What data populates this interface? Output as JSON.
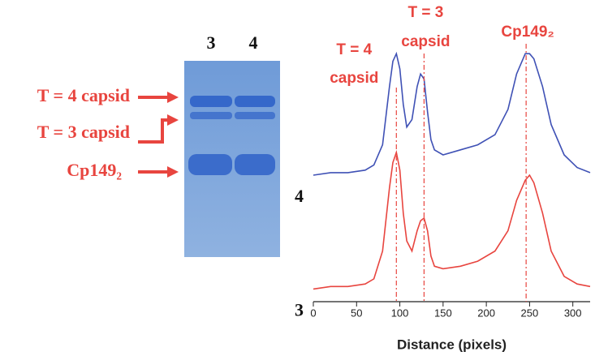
{
  "gel": {
    "lanes": [
      "3",
      "4"
    ],
    "bands": [
      "T = 4 capsid",
      "T = 3 capsid",
      "Cp149₂"
    ]
  },
  "chart_data": {
    "type": "line",
    "x_label": "Distance (pixels)",
    "x": [
      0,
      20,
      40,
      60,
      70,
      80,
      88,
      92,
      96,
      100,
      104,
      108,
      114,
      120,
      124,
      128,
      132,
      136,
      140,
      150,
      170,
      190,
      210,
      225,
      235,
      245,
      250,
      255,
      265,
      275,
      290,
      305,
      320
    ],
    "series": [
      {
        "name": "4",
        "color": "#3f51b5",
        "values": [
          50,
          51,
          51,
          52,
          54,
          62,
          85,
          95,
          98,
          92,
          78,
          69,
          72,
          85,
          90,
          88,
          75,
          64,
          60,
          58,
          60,
          62,
          66,
          76,
          90,
          98,
          98,
          96,
          85,
          70,
          58,
          53,
          51
        ]
      },
      {
        "name": "3",
        "color": "#e8453f",
        "values": [
          5,
          6,
          6,
          7,
          9,
          20,
          45,
          55,
          59,
          52,
          35,
          24,
          20,
          28,
          32,
          33,
          28,
          18,
          14,
          13,
          14,
          16,
          20,
          28,
          40,
          48,
          50,
          47,
          35,
          20,
          10,
          7,
          6
        ]
      }
    ],
    "annotations": [
      {
        "x": 96,
        "label": [
          "T = 4",
          "capsid"
        ]
      },
      {
        "x": 128,
        "label": [
          "T = 3",
          "capsid"
        ]
      },
      {
        "x": 246,
        "label": [
          "Cp149₂"
        ]
      }
    ],
    "annotation_color": "#e8453f",
    "xlim": [
      0,
      320
    ],
    "ylim": [
      0,
      100
    ],
    "xticks": [
      0,
      50,
      100,
      150,
      200,
      250,
      300
    ]
  }
}
